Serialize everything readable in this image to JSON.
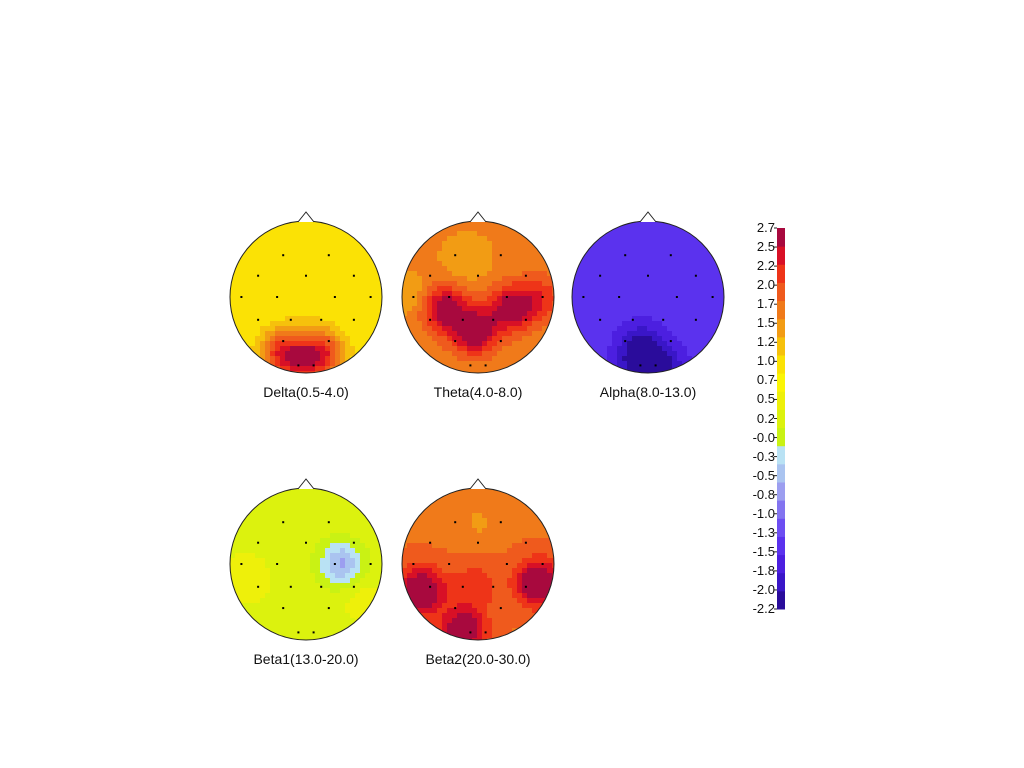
{
  "chart_data": {
    "type": "heatmap",
    "colorbar": {
      "ticks": [
        "2.7",
        "2.5",
        "2.2",
        "2.0",
        "1.7",
        "1.5",
        "1.2",
        "1.0",
        "0.7",
        "0.5",
        "0.2",
        "-0.0",
        "-0.3",
        "-0.5",
        "-0.8",
        "-1.0",
        "-1.3",
        "-1.5",
        "-1.8",
        "-2.0",
        "-2.2"
      ],
      "range": [
        -2.2,
        2.7
      ],
      "colors": [
        "#2a0c9b",
        "#3a16c8",
        "#4c1fe0",
        "#5b32ee",
        "#6d4ef2",
        "#8374f0",
        "#9c9ef0",
        "#aac4f0",
        "#b9e2f4",
        "#c9f214",
        "#dcf20e",
        "#eef00a",
        "#fbf506",
        "#fbe205",
        "#f6c10c",
        "#f29c14",
        "#f07a1a",
        "#ef5a1d",
        "#ee3418",
        "#d81026",
        "#a8093e"
      ]
    },
    "maps": [
      {
        "label": "Delta(0.5-4.0)",
        "base": 0.85,
        "blobs": [
          {
            "nx": -0.32,
            "ny": 0.72,
            "amp": 1.2
          },
          {
            "nx": 0.22,
            "ny": 0.72,
            "amp": 1.2
          },
          {
            "nx": -0.05,
            "ny": 0.9,
            "amp": 1.0
          },
          {
            "nx": -0.05,
            "ny": 0.25,
            "amp": 0.1
          }
        ]
      },
      {
        "label": "Theta(4.0-8.0)",
        "base": 1.6,
        "blobs": [
          {
            "nx": -0.45,
            "ny": 0.15,
            "amp": 1.1
          },
          {
            "nx": 0.45,
            "ny": 0.15,
            "amp": 1.1
          },
          {
            "nx": -0.05,
            "ny": 0.45,
            "amp": 1.2
          },
          {
            "nx": -0.15,
            "ny": -0.5,
            "amp": -0.3
          },
          {
            "nx": 0.85,
            "ny": 0.0,
            "amp": 0.5
          },
          {
            "nx": -0.85,
            "ny": 0.0,
            "amp": -0.3
          }
        ]
      },
      {
        "label": "Alpha(8.0-13.0)",
        "base": -1.35,
        "blobs": [
          {
            "nx": -0.1,
            "ny": 0.6,
            "amp": -0.5
          },
          {
            "nx": -0.15,
            "ny": 0.9,
            "amp": -0.6
          },
          {
            "nx": 0.2,
            "ny": 0.9,
            "amp": -0.6
          }
        ]
      },
      {
        "label": "Beta1(13.0-20.0)",
        "base": 0.3,
        "blobs": [
          {
            "nx": 0.47,
            "ny": 0.0,
            "amp": -0.9
          },
          {
            "nx": -0.05,
            "ny": -0.3,
            "amp": -0.05
          },
          {
            "nx": -0.8,
            "ny": 0.2,
            "amp": 0.25
          },
          {
            "nx": 0.75,
            "ny": 0.45,
            "amp": 0.2
          }
        ]
      },
      {
        "label": "Beta2(20.0-30.0)",
        "base": 1.75,
        "blobs": [
          {
            "nx": -0.75,
            "ny": 0.35,
            "amp": 1.2
          },
          {
            "nx": 0.8,
            "ny": 0.25,
            "amp": 1.2
          },
          {
            "nx": -0.2,
            "ny": 0.88,
            "amp": 1.1
          },
          {
            "nx": -0.05,
            "ny": 0.3,
            "amp": 0.45
          },
          {
            "nx": 0.0,
            "ny": -0.55,
            "amp": -0.25
          }
        ]
      }
    ]
  }
}
